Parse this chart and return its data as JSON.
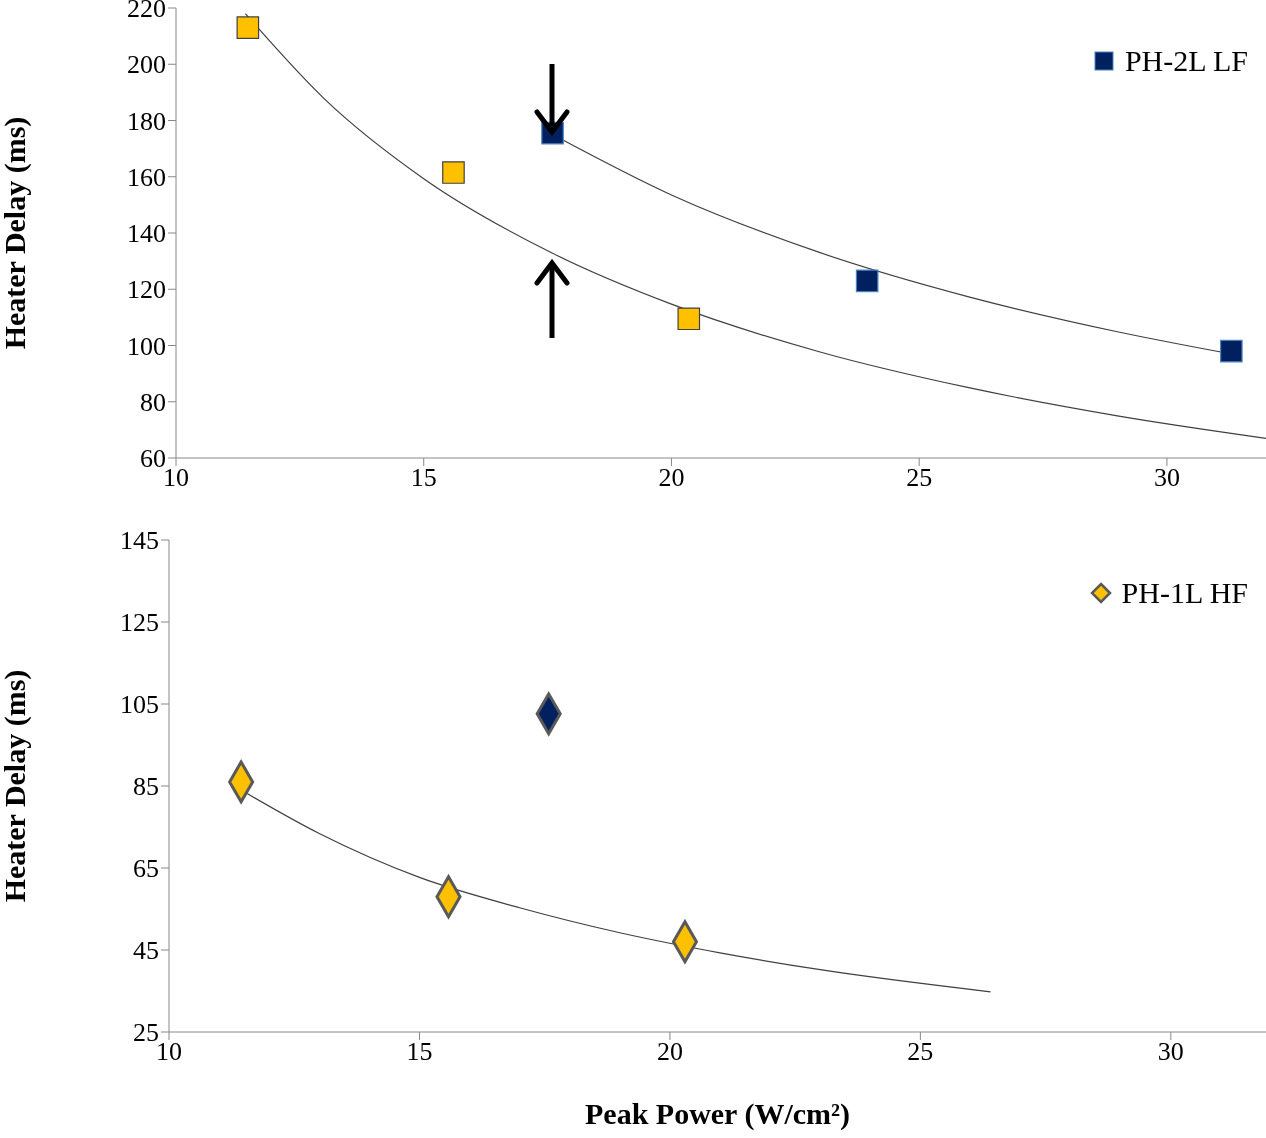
{
  "chart_data": [
    {
      "type": "scatter",
      "ylabel": "Heater Delay (ms)",
      "xlim": [
        10,
        32
      ],
      "xticks": [
        10,
        15,
        20,
        25,
        30
      ],
      "ylim": [
        60,
        220
      ],
      "yticks": [
        60,
        80,
        100,
        120,
        140,
        160,
        180,
        200,
        220
      ],
      "grid": false,
      "legend": "top right",
      "series": [
        {
          "type": "scatter",
          "marker": "square",
          "color": "#ffc000",
          "x": [
            11.45,
            15.6,
            20.35
          ],
          "values": [
            213,
            161.5,
            109.5
          ]
        },
        {
          "type": "scatter",
          "marker": "square",
          "name": "PH-2L LF",
          "color": "#002060",
          "x": [
            17.6,
            23.95,
            31.3
          ],
          "values": [
            175.5,
            123,
            98
          ]
        },
        {
          "type": "line",
          "marker": "none",
          "color": "#404040",
          "x": [
            11.4,
            13,
            15,
            17.6,
            20,
            23,
            26,
            29,
            32
          ],
          "values": [
            218,
            187.6,
            159.3,
            132.8,
            114.7,
            97.7,
            85,
            75,
            67
          ]
        },
        {
          "type": "line",
          "marker": "none",
          "color": "#404040",
          "x": [
            17.6,
            20,
            23,
            26,
            29,
            31.3
          ],
          "values": [
            175,
            153.5,
            133,
            117.3,
            104.9,
            97
          ]
        }
      ]
    },
    {
      "type": "scatter",
      "xlabel": "Peak Power (W/cm²)",
      "ylabel": "Heater Delay (ms)",
      "xlim": [
        10,
        31.9
      ],
      "xticks": [
        10,
        15,
        20,
        25,
        30
      ],
      "ylim": [
        25,
        145
      ],
      "yticks": [
        25,
        45,
        65,
        85,
        105,
        125,
        145
      ],
      "grid": false,
      "legend": "top right",
      "series": [
        {
          "type": "scatter",
          "marker": "diamond",
          "name": "PH-1L HF",
          "color": "#ffc000",
          "x": [
            11.44,
            15.58,
            20.3
          ],
          "values": [
            86,
            58,
            47
          ]
        },
        {
          "type": "scatter",
          "marker": "diamond",
          "color": "#002060",
          "x": [
            17.58
          ],
          "values": [
            102.6
          ]
        },
        {
          "type": "line",
          "marker": "none",
          "color": "#404040",
          "x": [
            11.44,
            13,
            15,
            17,
            19,
            21,
            23,
            26.4
          ],
          "values": [
            84,
            73.4,
            62.7,
            55.3,
            49.2,
            44.3,
            40.2,
            34.8
          ]
        }
      ]
    }
  ]
}
